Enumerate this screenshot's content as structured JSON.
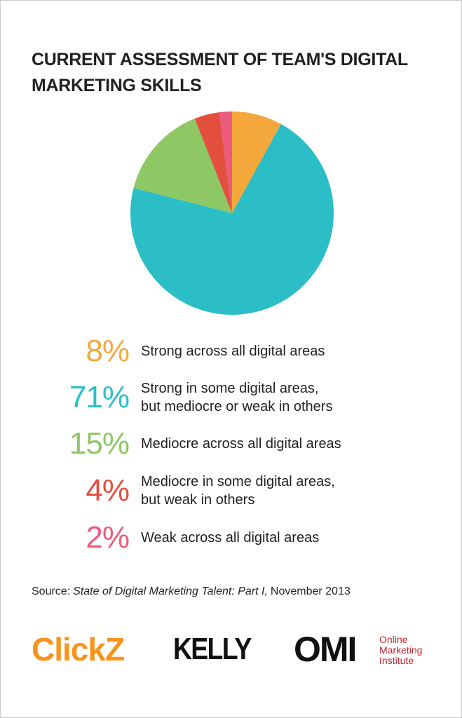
{
  "chart_data": {
    "type": "pie",
    "title": "CURRENT ASSESSMENT OF TEAM'S DIGITAL MARKETING SKILLS",
    "categories": [
      "Strong across all digital areas",
      "Strong in some digital areas,\nbut mediocre or weak in others",
      "Mediocre across all digital areas",
      "Mediocre in some digital areas,\nbut weak in others",
      "Weak across all digital areas"
    ],
    "values": [
      8,
      71,
      15,
      4,
      2
    ],
    "value_labels": [
      "8%",
      "71%",
      "15%",
      "4%",
      "2%"
    ],
    "colors": [
      "#f4a83c",
      "#2bbec6",
      "#8dc865",
      "#e24f3d",
      "#ec5b7d"
    ]
  },
  "source": {
    "prefix": "Source:",
    "title": "State of Digital Marketing Talent: Part I,",
    "date": "November 2013"
  },
  "logos": {
    "clickz": "ClickZ",
    "kelly": "KELLY",
    "omi": "OMI",
    "omi_name": [
      "Online",
      "Marketing",
      "Institute"
    ]
  }
}
